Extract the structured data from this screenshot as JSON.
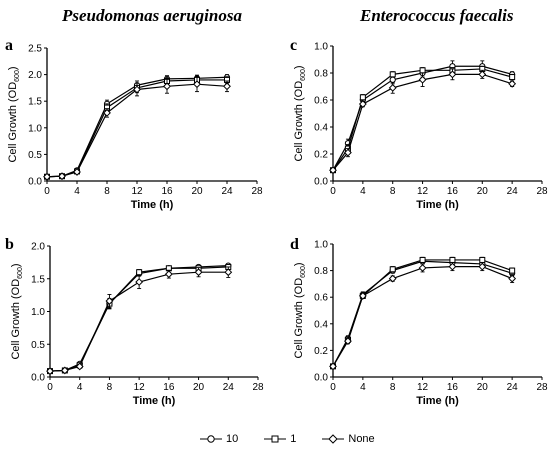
{
  "titles": {
    "left": "Pseudomonas aeruginosa",
    "right": "Enterococcus faecalis"
  },
  "legend": {
    "items": [
      {
        "label": "10",
        "marker": "circle"
      },
      {
        "label": "1",
        "marker": "square"
      },
      {
        "label": "None",
        "marker": "diamond"
      }
    ]
  },
  "chart_data": [
    {
      "panel": "a",
      "type": "line",
      "xlabel": "Time (h)",
      "ylabel": "Cell Growth (OD600)",
      "xlim": [
        0,
        28
      ],
      "ylim": [
        0,
        2.5
      ],
      "xticks": [
        0,
        4,
        8,
        12,
        16,
        20,
        24,
        28
      ],
      "yticks": [
        0.0,
        0.5,
        1.0,
        1.5,
        2.0,
        2.5
      ],
      "ytick_labels": [
        "0.0",
        "0.5",
        "1.0",
        "1.5",
        "2.0",
        "2.5"
      ],
      "x": [
        0,
        2,
        4,
        8,
        12,
        16,
        20,
        24
      ],
      "series": [
        {
          "name": "10",
          "marker": "circle",
          "values": [
            0.08,
            0.09,
            0.2,
            1.45,
            1.8,
            1.92,
            1.93,
            1.95
          ],
          "err": [
            0.02,
            0.02,
            0.03,
            0.07,
            0.08,
            0.06,
            0.06,
            0.05
          ]
        },
        {
          "name": "1",
          "marker": "square",
          "values": [
            0.08,
            0.09,
            0.18,
            1.38,
            1.75,
            1.88,
            1.9,
            1.9
          ],
          "err": [
            0.02,
            0.02,
            0.03,
            0.07,
            0.09,
            0.07,
            0.07,
            0.06
          ]
        },
        {
          "name": "None",
          "marker": "diamond",
          "values": [
            0.08,
            0.09,
            0.17,
            1.28,
            1.72,
            1.78,
            1.82,
            1.78
          ],
          "err": [
            0.02,
            0.02,
            0.03,
            0.08,
            0.12,
            0.13,
            0.14,
            0.1
          ]
        }
      ]
    },
    {
      "panel": "c",
      "type": "line",
      "xlabel": "Time (h)",
      "ylabel": "Cell Growth (OD600)",
      "xlim": [
        0,
        28
      ],
      "ylim": [
        0,
        1.0
      ],
      "xticks": [
        0,
        4,
        8,
        12,
        16,
        20,
        24,
        28
      ],
      "yticks": [
        0.0,
        0.2,
        0.4,
        0.6,
        0.8,
        1.0
      ],
      "ytick_labels": [
        "0.0",
        "0.2",
        "0.4",
        "0.6",
        "0.8",
        "1.0"
      ],
      "x": [
        0,
        2,
        4,
        8,
        12,
        16,
        20,
        24
      ],
      "series": [
        {
          "name": "10",
          "marker": "circle",
          "values": [
            0.08,
            0.28,
            0.6,
            0.75,
            0.8,
            0.85,
            0.85,
            0.79
          ],
          "err": [
            0.01,
            0.03,
            0.02,
            0.03,
            0.03,
            0.04,
            0.04,
            0.02
          ]
        },
        {
          "name": "1",
          "marker": "square",
          "values": [
            0.08,
            0.24,
            0.62,
            0.79,
            0.82,
            0.82,
            0.83,
            0.77
          ],
          "err": [
            0.01,
            0.03,
            0.02,
            0.02,
            0.02,
            0.02,
            0.02,
            0.02
          ]
        },
        {
          "name": "None",
          "marker": "diamond",
          "values": [
            0.08,
            0.21,
            0.57,
            0.69,
            0.75,
            0.79,
            0.79,
            0.72
          ],
          "err": [
            0.01,
            0.03,
            0.02,
            0.04,
            0.05,
            0.04,
            0.03,
            0.02
          ]
        }
      ]
    },
    {
      "panel": "b",
      "type": "line",
      "xlabel": "Time (h)",
      "ylabel": "Cell Growth (OD600)",
      "xlim": [
        0,
        28
      ],
      "ylim": [
        0,
        2.0
      ],
      "xticks": [
        0,
        4,
        8,
        12,
        16,
        20,
        24,
        28
      ],
      "yticks": [
        0.0,
        0.5,
        1.0,
        1.5,
        2.0
      ],
      "ytick_labels": [
        "0.0",
        "0.5",
        "1.0",
        "1.5",
        "2.0"
      ],
      "x": [
        0,
        2,
        4,
        8,
        12,
        16,
        20,
        24
      ],
      "series": [
        {
          "name": "10",
          "marker": "circle",
          "values": [
            0.09,
            0.1,
            0.2,
            1.12,
            1.58,
            1.66,
            1.68,
            1.7
          ],
          "err": [
            0.02,
            0.02,
            0.03,
            0.08,
            0.04,
            0.03,
            0.03,
            0.03
          ]
        },
        {
          "name": "1",
          "marker": "square",
          "values": [
            0.09,
            0.1,
            0.18,
            1.12,
            1.6,
            1.66,
            1.66,
            1.68
          ],
          "err": [
            0.02,
            0.02,
            0.03,
            0.07,
            0.04,
            0.03,
            0.03,
            0.03
          ]
        },
        {
          "name": "None",
          "marker": "diamond",
          "values": [
            0.09,
            0.1,
            0.16,
            1.16,
            1.45,
            1.57,
            1.6,
            1.6
          ],
          "err": [
            0.02,
            0.02,
            0.03,
            0.1,
            0.1,
            0.06,
            0.07,
            0.08
          ]
        }
      ]
    },
    {
      "panel": "d",
      "type": "line",
      "xlabel": "Time (h)",
      "ylabel": "Cell Growth (OD600)",
      "xlim": [
        0,
        28
      ],
      "ylim": [
        0,
        1.0
      ],
      "xticks": [
        0,
        4,
        8,
        12,
        16,
        20,
        24,
        28
      ],
      "yticks": [
        0.0,
        0.2,
        0.4,
        0.6,
        0.8,
        1.0
      ],
      "ytick_labels": [
        "0.0",
        "0.2",
        "0.4",
        "0.6",
        "0.8",
        "1.0"
      ],
      "x": [
        0,
        2,
        4,
        8,
        12,
        16,
        20,
        24
      ],
      "series": [
        {
          "name": "10",
          "marker": "circle",
          "values": [
            0.08,
            0.29,
            0.62,
            0.8,
            0.87,
            0.86,
            0.85,
            0.78
          ],
          "err": [
            0.01,
            0.02,
            0.02,
            0.02,
            0.02,
            0.02,
            0.02,
            0.02
          ]
        },
        {
          "name": "1",
          "marker": "square",
          "values": [
            0.08,
            0.28,
            0.61,
            0.81,
            0.88,
            0.88,
            0.88,
            0.8
          ],
          "err": [
            0.01,
            0.02,
            0.02,
            0.02,
            0.02,
            0.02,
            0.02,
            0.02
          ]
        },
        {
          "name": "None",
          "marker": "diamond",
          "values": [
            0.08,
            0.27,
            0.61,
            0.74,
            0.82,
            0.83,
            0.83,
            0.74
          ],
          "err": [
            0.01,
            0.02,
            0.02,
            0.02,
            0.03,
            0.03,
            0.03,
            0.03
          ]
        }
      ]
    }
  ]
}
